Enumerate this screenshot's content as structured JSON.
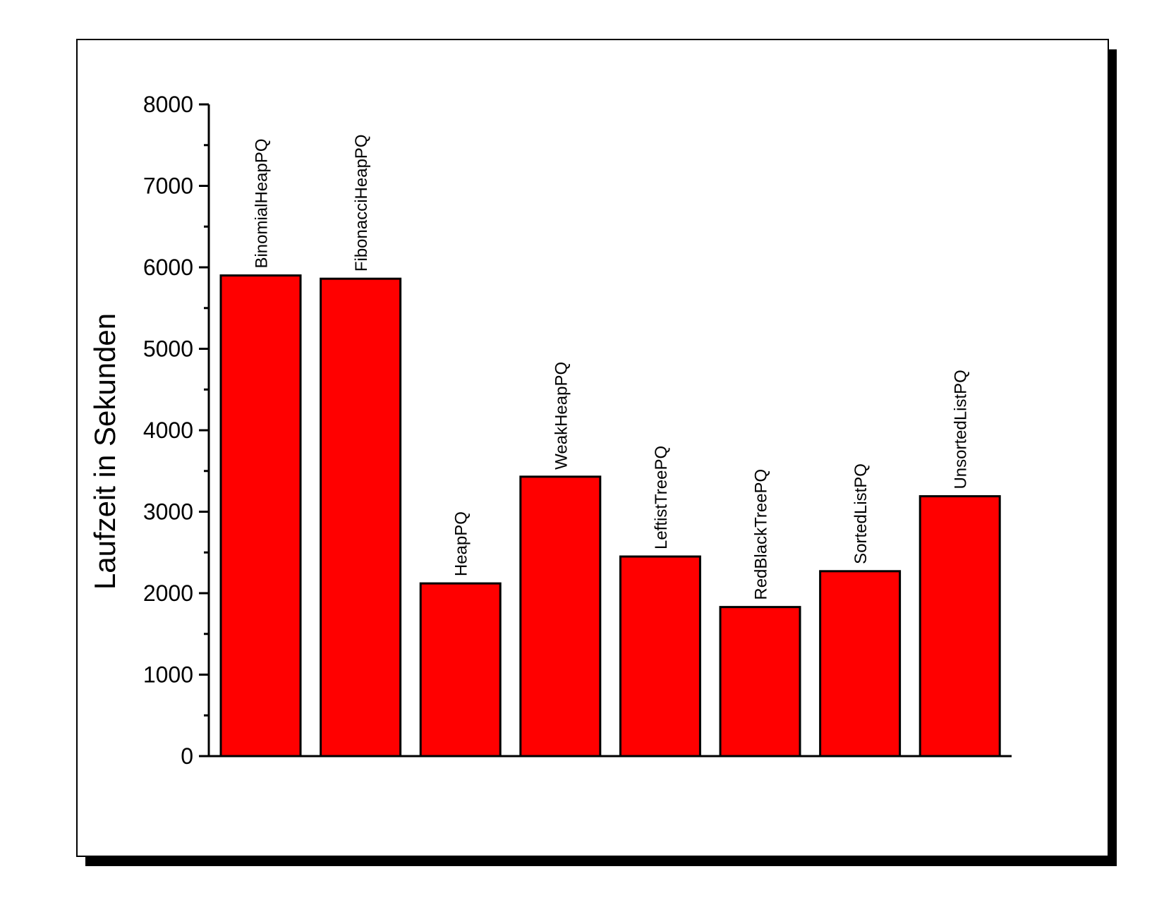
{
  "chart_data": {
    "type": "bar",
    "categories": [
      "BinomialHeapPQ",
      "FibonacciHeapPQ",
      "HeapPQ",
      "WeakHeapPQ",
      "LeftistTreePQ",
      "RedBlackTreePQ",
      "SortedListPQ",
      "UnsortedListPQ"
    ],
    "values": [
      5900,
      5860,
      2120,
      3430,
      2450,
      1830,
      2270,
      3190
    ],
    "title": "",
    "xlabel": "",
    "ylabel": "Laufzeit in Sekunden",
    "ylim": [
      0,
      8000
    ],
    "yticks": [
      "0",
      "1000",
      "2000",
      "3000",
      "4000",
      "5000",
      "6000",
      "7000",
      "8000"
    ],
    "grid": false,
    "legend": "none",
    "bar_color": "#ff0000",
    "edge_color": "#000000",
    "frame_shadow_color": "#000000"
  }
}
